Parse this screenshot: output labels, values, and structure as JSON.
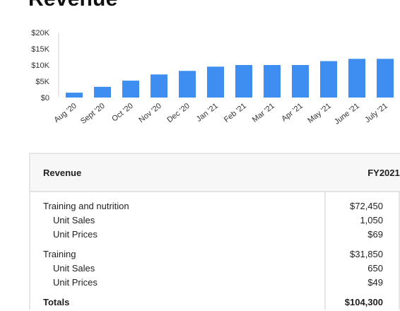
{
  "page": {
    "title": "Revenue"
  },
  "chart_data": {
    "type": "bar",
    "categories": [
      "Aug '20",
      "Sept '20",
      "Oct '20",
      "Nov '20",
      "Dec '20",
      "Jan '21",
      "Feb '21",
      "Mar '21",
      "Apr '21",
      "May '21",
      "June '21",
      "July '21"
    ],
    "values": [
      1500,
      3300,
      5200,
      7100,
      8200,
      9500,
      10000,
      10000,
      10000,
      11200,
      11900,
      11900
    ],
    "ylim": [
      0,
      20000
    ],
    "yticks": [
      {
        "value": 0,
        "label": "$0"
      },
      {
        "value": 5000,
        "label": "$5K"
      },
      {
        "value": 10000,
        "label": "$10K"
      },
      {
        "value": 15000,
        "label": "$15K"
      },
      {
        "value": 20000,
        "label": "$20K"
      }
    ],
    "bar_color": "#3d8ef0",
    "grid": false,
    "title": "",
    "xlabel": "",
    "ylabel": ""
  },
  "table": {
    "header": {
      "label": "Revenue",
      "year": "FY2021"
    },
    "rows": [
      {
        "label": "Training and nutrition",
        "value": "$72,450"
      },
      {
        "label": "Unit Sales",
        "value": "1,050"
      },
      {
        "label": "Unit Prices",
        "value": "$69"
      },
      {
        "label": "Training",
        "value": "$31,850"
      },
      {
        "label": "Unit Sales",
        "value": "650"
      },
      {
        "label": "Unit Prices",
        "value": "$49"
      },
      {
        "label": "Totals",
        "value": "$104,300"
      }
    ]
  }
}
